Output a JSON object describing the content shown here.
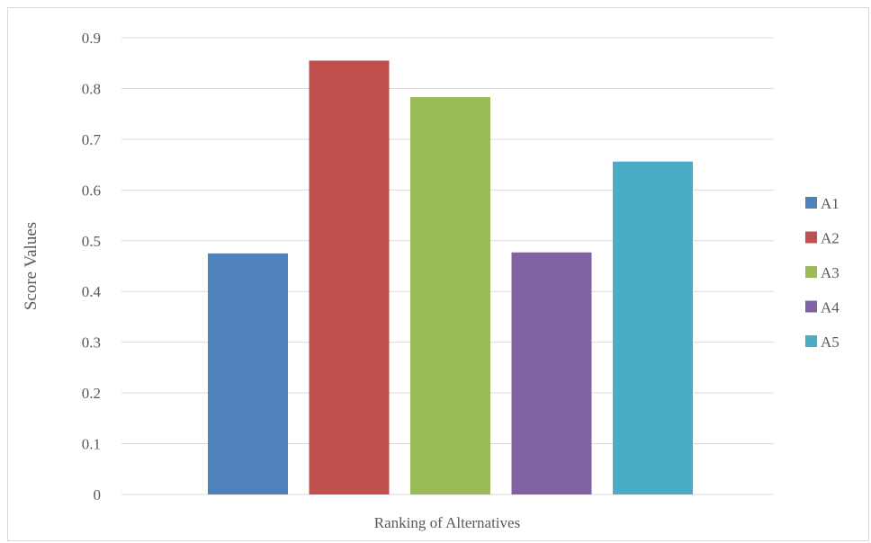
{
  "chart_data": {
    "type": "bar",
    "title": "",
    "xlabel": "Ranking of Alternatives",
    "ylabel": "Score Values",
    "ylim": [
      0,
      0.9
    ],
    "yticks": [
      "0",
      "0.1",
      "0.2",
      "0.3",
      "0.4",
      "0.5",
      "0.6",
      "0.7",
      "0.8",
      "0.9"
    ],
    "grid": true,
    "legend_position": "right",
    "series": [
      {
        "name": "A1",
        "values": [
          0.475
        ],
        "color": "#4f81bd"
      },
      {
        "name": "A2",
        "values": [
          0.855
        ],
        "color": "#c0504d"
      },
      {
        "name": "A3",
        "values": [
          0.783
        ],
        "color": "#9bbb59"
      },
      {
        "name": "A4",
        "values": [
          0.477
        ],
        "color": "#8064a2"
      },
      {
        "name": "A5",
        "values": [
          0.656
        ],
        "color": "#4bacc6"
      }
    ]
  }
}
